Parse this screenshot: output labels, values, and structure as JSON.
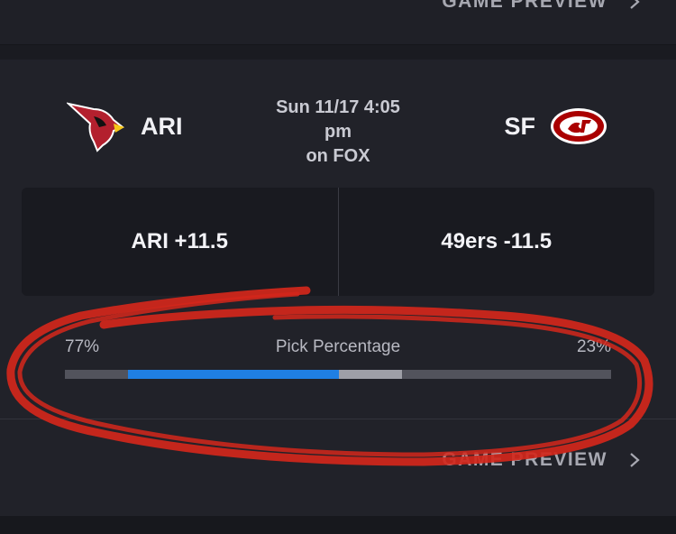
{
  "top_card": {
    "preview_label": "GAME PREVIEW"
  },
  "game": {
    "away": {
      "abbr": "ARI",
      "logo_icon": "cardinals-logo-icon"
    },
    "home": {
      "abbr": "SF",
      "logo_icon": "49ers-logo-icon"
    },
    "date_time_line1": "Sun 11/17 4:05",
    "date_time_line2": "pm",
    "network": "on FOX"
  },
  "spread": {
    "away_label": "ARI +11.5",
    "home_label": "49ers -11.5"
  },
  "pick": {
    "title": "Pick Percentage",
    "away_pct_label": "77%",
    "home_pct_label": "23%"
  },
  "bottom_card": {
    "preview_label": "GAME PREVIEW"
  },
  "colors": {
    "bar_primary": "#1f7fe3",
    "bar_secondary": "#9e9fa7",
    "bar_track": "#52535c",
    "annotation_red": "#d3271b"
  }
}
